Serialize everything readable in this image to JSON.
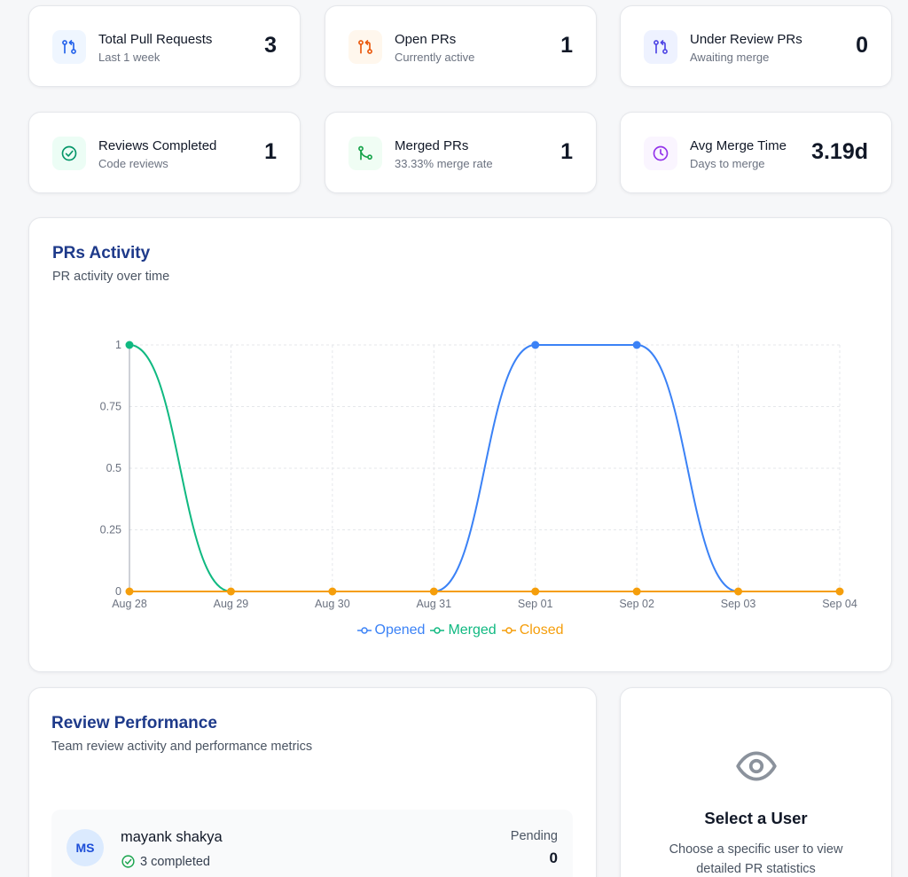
{
  "stats": [
    {
      "title": "Total Pull Requests",
      "subtitle": "Last 1 week",
      "value": "3",
      "icon": "pull-request-icon",
      "icon_color": "#2563eb",
      "icon_bg": "#eff6ff"
    },
    {
      "title": "Open PRs",
      "subtitle": "Currently active",
      "value": "1",
      "icon": "pull-request-icon",
      "icon_color": "#ea580c",
      "icon_bg": "#fff7ed"
    },
    {
      "title": "Under Review PRs",
      "subtitle": "Awaiting merge",
      "value": "0",
      "icon": "pull-request-icon",
      "icon_color": "#4f46e5",
      "icon_bg": "#eef2ff"
    },
    {
      "title": "Reviews Completed",
      "subtitle": "Code reviews",
      "value": "1",
      "icon": "check-circle-icon",
      "icon_color": "#059669",
      "icon_bg": "#ecfdf5"
    },
    {
      "title": "Merged PRs",
      "subtitle": "33.33% merge rate",
      "value": "1",
      "icon": "git-merge-icon",
      "icon_color": "#16a34a",
      "icon_bg": "#f0fdf4"
    },
    {
      "title": "Avg Merge Time",
      "subtitle": "Days to merge",
      "value": "3.19d",
      "icon": "clock-icon",
      "icon_color": "#9333ea",
      "icon_bg": "#faf5ff"
    }
  ],
  "activity": {
    "title": "PRs Activity",
    "subtitle": "PR activity over time"
  },
  "chart_data": {
    "type": "line",
    "categories": [
      "Aug 28",
      "Aug 29",
      "Aug 30",
      "Aug 31",
      "Sep 01",
      "Sep 02",
      "Sep 03",
      "Sep 04"
    ],
    "series": [
      {
        "name": "Opened",
        "color": "#3b82f6",
        "values": [
          0,
          0,
          0,
          0,
          1,
          1,
          0,
          0
        ]
      },
      {
        "name": "Merged",
        "color": "#10b981",
        "values": [
          1,
          0,
          0,
          0,
          0,
          0,
          0,
          0
        ]
      },
      {
        "name": "Closed",
        "color": "#f59e0b",
        "values": [
          0,
          0,
          0,
          0,
          0,
          0,
          0,
          0
        ]
      }
    ],
    "yticks": [
      "0",
      "0.25",
      "0.5",
      "0.75",
      "1"
    ],
    "ylim": [
      0,
      1
    ],
    "grid": true,
    "legend": "bottom-center"
  },
  "review": {
    "title": "Review Performance",
    "subtitle": "Team review activity and performance metrics",
    "user": {
      "initials": "MS",
      "name": "mayank shakya",
      "completed": "3 completed",
      "pending_label": "Pending",
      "pending_value": "0"
    }
  },
  "select_user": {
    "title": "Select a User",
    "line1": "Choose a specific user to view",
    "line2": "detailed PR statistics",
    "icon": "eye-icon"
  }
}
